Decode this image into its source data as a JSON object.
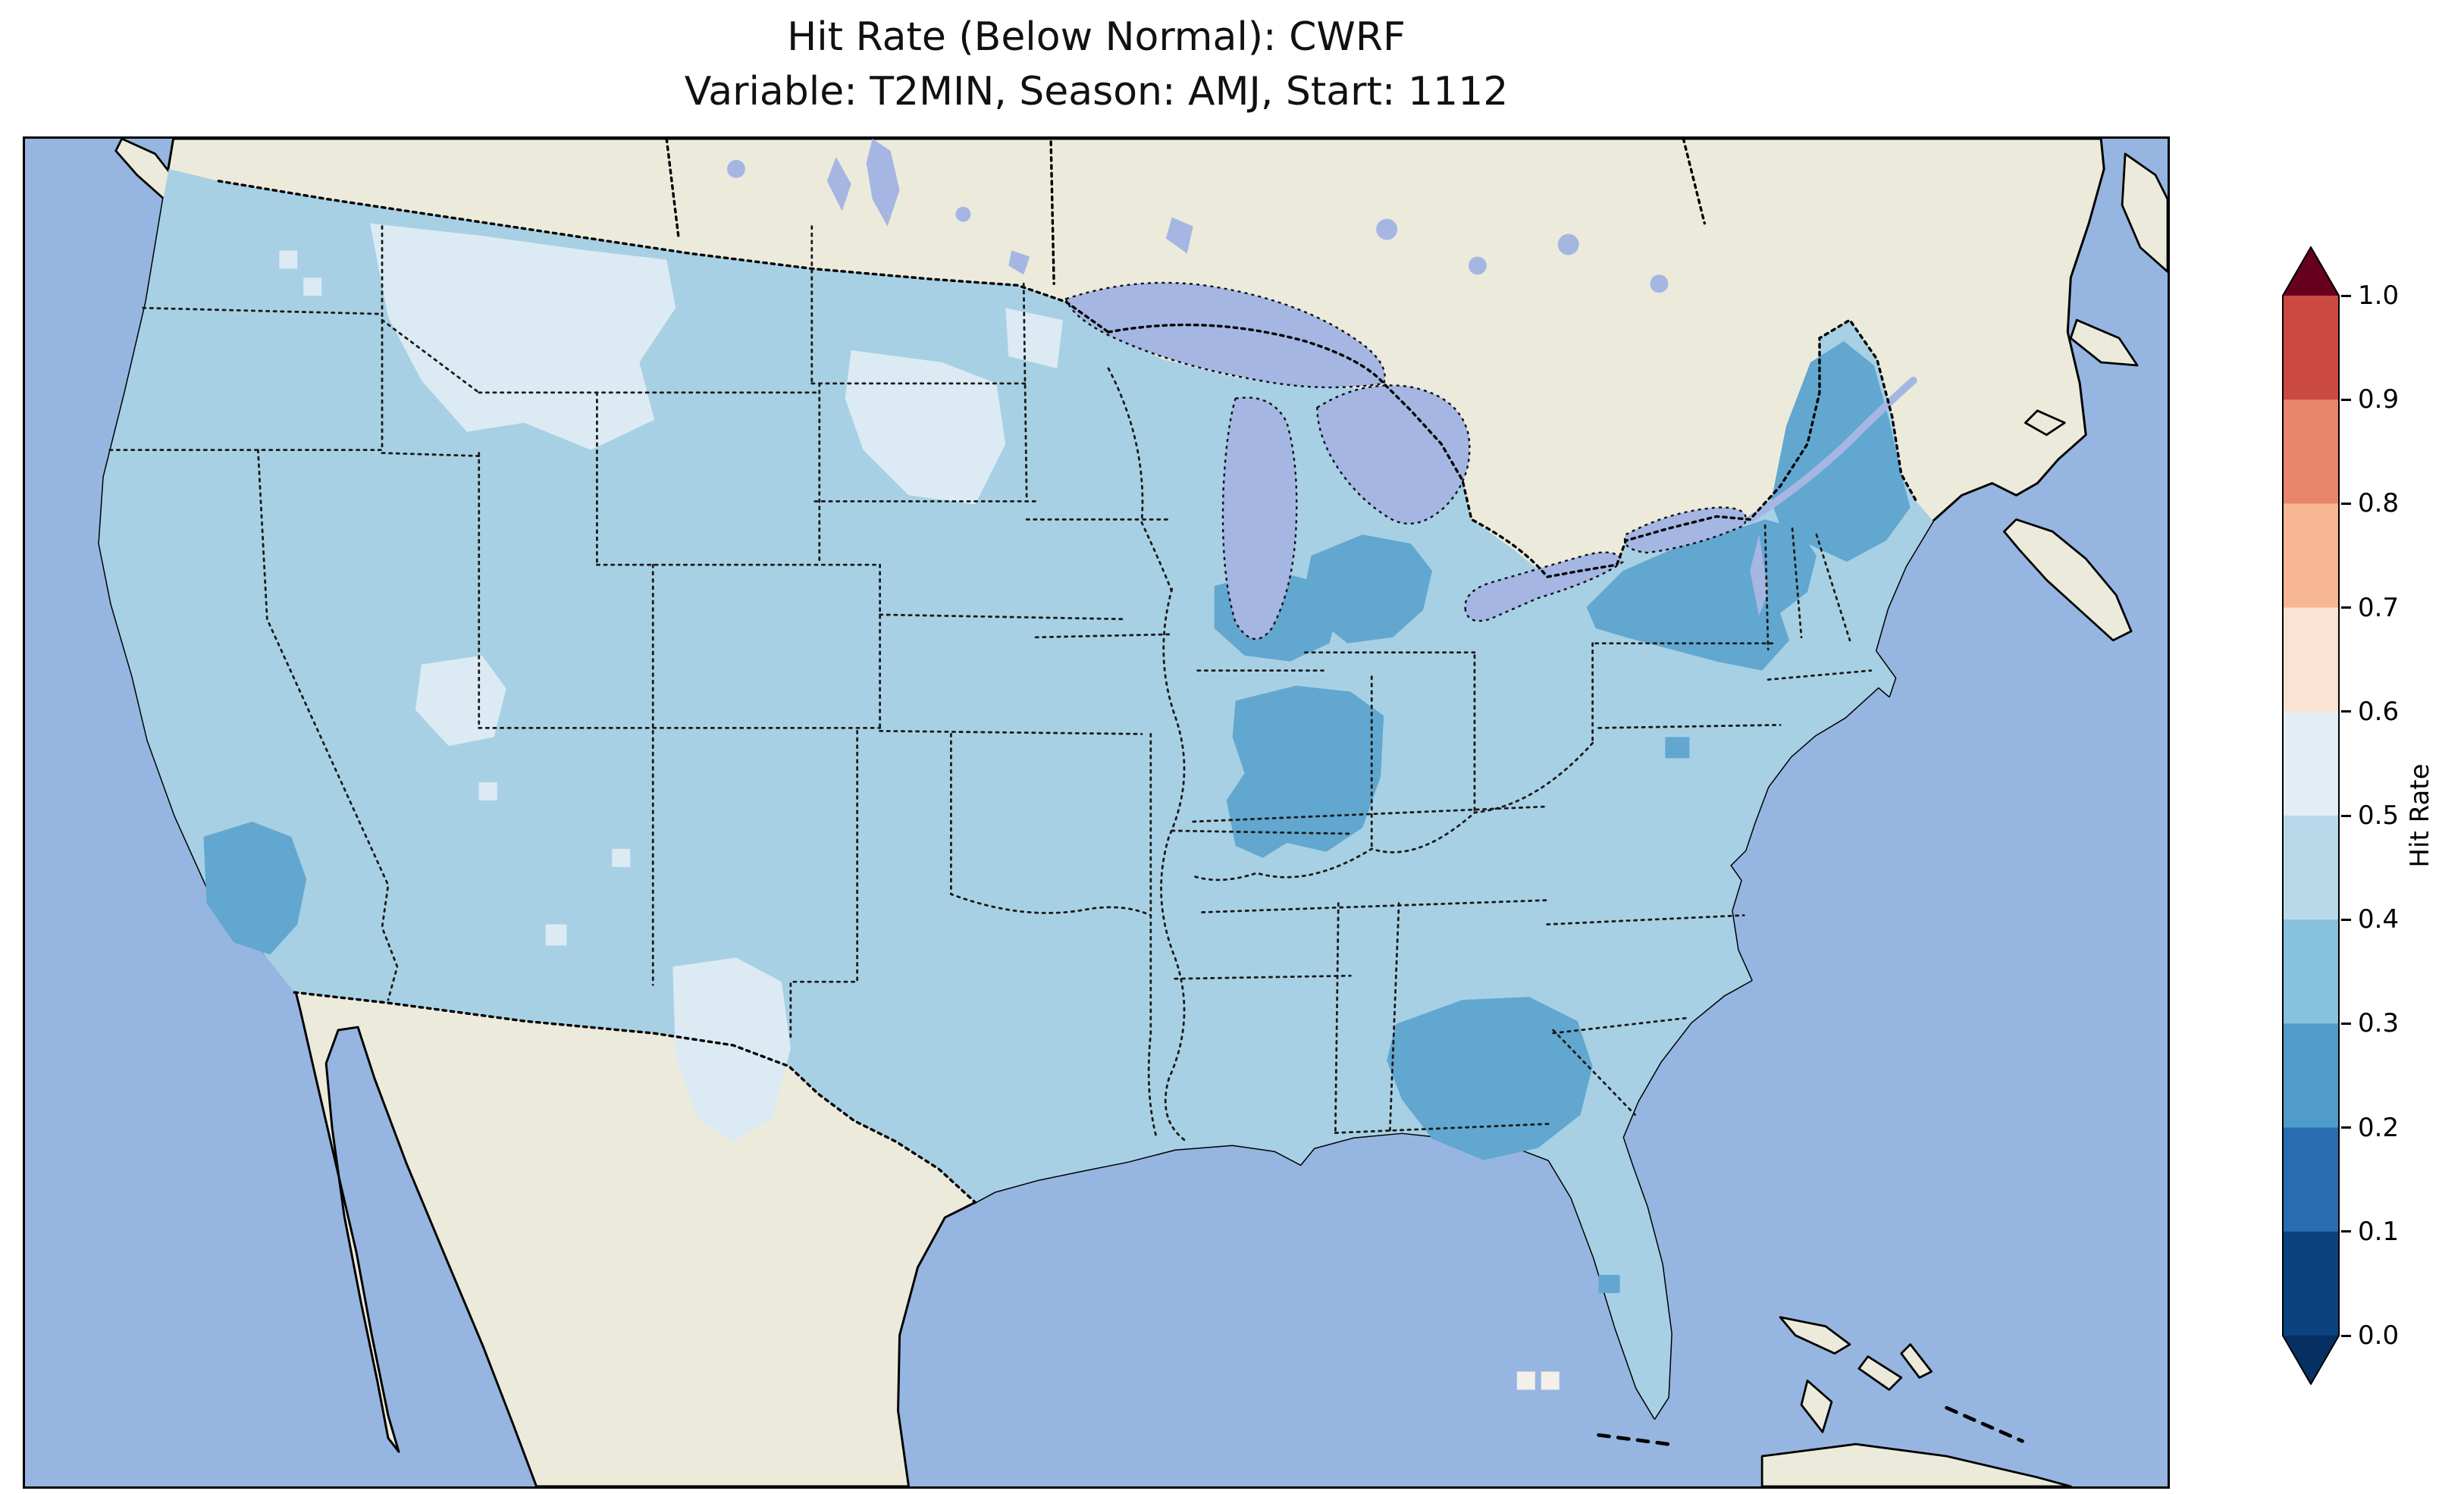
{
  "figure": {
    "title_line1": "Hit Rate (Below Normal): CWRF",
    "title_line2": "Variable: T2MIN, Season: AMJ, Start: 1112",
    "metric": "Hit Rate",
    "category": "Below Normal",
    "model": "CWRF",
    "variable": "T2MIN",
    "season": "AMJ",
    "start": "1112"
  },
  "colorbar": {
    "label": "Hit Rate",
    "ticks": [
      "1.0",
      "0.9",
      "0.8",
      "0.7",
      "0.6",
      "0.5",
      "0.4",
      "0.3",
      "0.2",
      "0.1",
      "0.0"
    ],
    "bin_colors_bottom_to_top": [
      "#0c4280",
      "#2a6cb0",
      "#4f9bc9",
      "#87c1dd",
      "#b9d9ea",
      "#e3edf3",
      "#fbe3d4",
      "#f8b793",
      "#e8866b",
      "#ca4a42"
    ],
    "under_color": "#053061",
    "over_color": "#67001f"
  },
  "map": {
    "colors": {
      "ocean": "#96b6e1",
      "land": "#ecebdb",
      "lakes": "#a5b6e2",
      "base_bin": "#a7d0e4",
      "dark_bin": "#61a7d0",
      "light_bin": "#dceaf3",
      "pale_bin": "#f5efe9",
      "coastline": "#000000",
      "border_lines": "#1a1a1a"
    },
    "region": "Contiguous United States with surrounding North America",
    "features": [
      "Great Lakes",
      "Canada",
      "Mexico",
      "Baja California",
      "Florida",
      "Bahamas",
      "Cuba",
      "Nova Scotia"
    ]
  },
  "chart_data": {
    "type": "heatmap",
    "title": "Hit Rate (Below Normal): CWRF",
    "subtitle": "Variable: T2MIN, Season: AMJ, Start: 1112",
    "geography": "Gridded hit-rate field over the contiguous United States",
    "colorbar": {
      "label": "Hit Rate",
      "range": [
        0.0,
        1.0
      ],
      "bin_width": 0.1,
      "tick_values": [
        0.0,
        0.1,
        0.2,
        0.3,
        0.4,
        0.5,
        0.6,
        0.7,
        0.8,
        0.9,
        1.0
      ],
      "colormap": "RdBu reversed (dark blue = 0.0, dark red = 1.0), discrete bins with extend triangles both ends",
      "legend_position": "right vertical"
    },
    "values_summary": [
      {
        "region": "Most of CONUS (baseline)",
        "hit_rate_bin": "0.3-0.4"
      },
      {
        "region": "Upper Midwest: eastern Wisconsin, northern Illinois, Indiana",
        "hit_rate_bin": "0.2-0.3"
      },
      {
        "region": "Lower Michigan",
        "hit_rate_bin": "0.2-0.3"
      },
      {
        "region": "Upstate New York and New England",
        "hit_rate_bin": "0.2-0.3"
      },
      {
        "region": "Maine",
        "hit_rate_bin": "0.2-0.3"
      },
      {
        "region": "Georgia / western South Carolina",
        "hit_rate_bin": "0.2-0.3"
      },
      {
        "region": "Southern California",
        "hit_rate_bin": "0.2-0.3"
      },
      {
        "region": "Eastern Washington / Idaho / western Montana",
        "hit_rate_bin": "0.4-0.5"
      },
      {
        "region": "Dakotas patch",
        "hit_rate_bin": "0.4-0.5"
      },
      {
        "region": "Utah patch",
        "hit_rate_bin": "0.4-0.5"
      },
      {
        "region": "West Texas / eastern New Mexico",
        "hit_rate_bin": "0.4-0.5"
      },
      {
        "region": "Scattered cells near Florida Keys",
        "hit_rate_bin": "0.5-0.6"
      }
    ]
  }
}
